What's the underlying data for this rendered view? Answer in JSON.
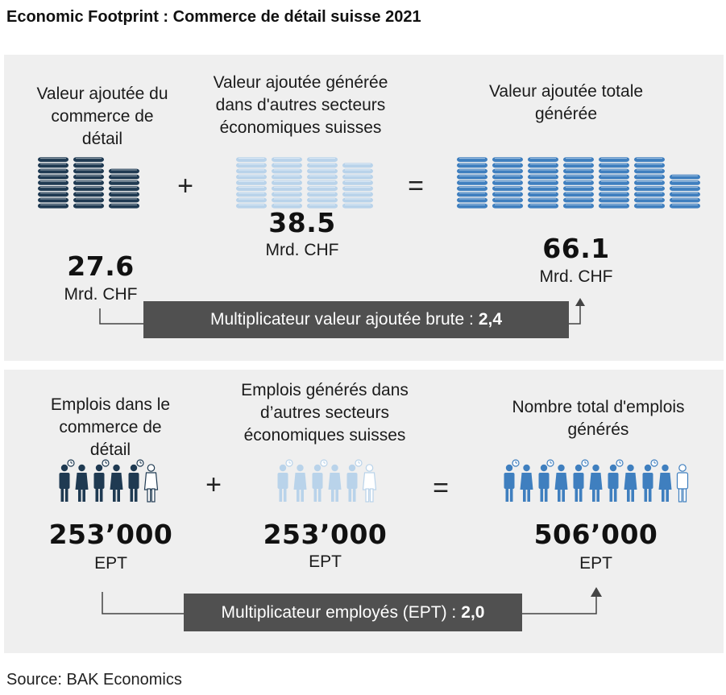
{
  "title": "Economic Footprint : Commerce de détail suisse 2021",
  "value_added": {
    "direct": {
      "label": "Valeur ajoutée du\ncommerce de\ndétail",
      "value": "27.6",
      "unit": "Mrd. CHF"
    },
    "indirect": {
      "label": "Valeur ajoutée générée\ndans d'autres secteurs\néconomiques suisses",
      "value": "38.5",
      "unit": "Mrd. CHF"
    },
    "total": {
      "label": "Valeur ajoutée totale\ngénérée",
      "value": "66.1",
      "unit": "Mrd. CHF"
    },
    "plus": "+",
    "equals": "=",
    "multiplier_label": "Multiplicateur valeur ajoutée brute :",
    "multiplier_value": "2,4"
  },
  "employment": {
    "direct": {
      "label": "Emplois dans le\ncommerce de\ndétail",
      "value": "253’000",
      "unit": "EPT"
    },
    "indirect": {
      "label": "Emplois générés dans\nd’autres secteurs\néconomiques suisses",
      "value": "253’000",
      "unit": "EPT"
    },
    "total": {
      "label": "Nombre total d'emplois\ngénérés",
      "value": "506’000",
      "unit": "EPT"
    },
    "plus": "+",
    "equals": "=",
    "multiplier_label": "Multiplicateur employés (EPT) :",
    "multiplier_value": "2,0"
  },
  "colors": {
    "direct": "#1f3a52",
    "indirect": "#b9d3ea",
    "total": "#3f7fbf",
    "panel": "#efefef",
    "multiplier_box": "#505050"
  },
  "icons": {
    "coins": "coin-stack-icon",
    "people": "worker-figure-icon"
  },
  "source": "Source: BAK Economics"
}
